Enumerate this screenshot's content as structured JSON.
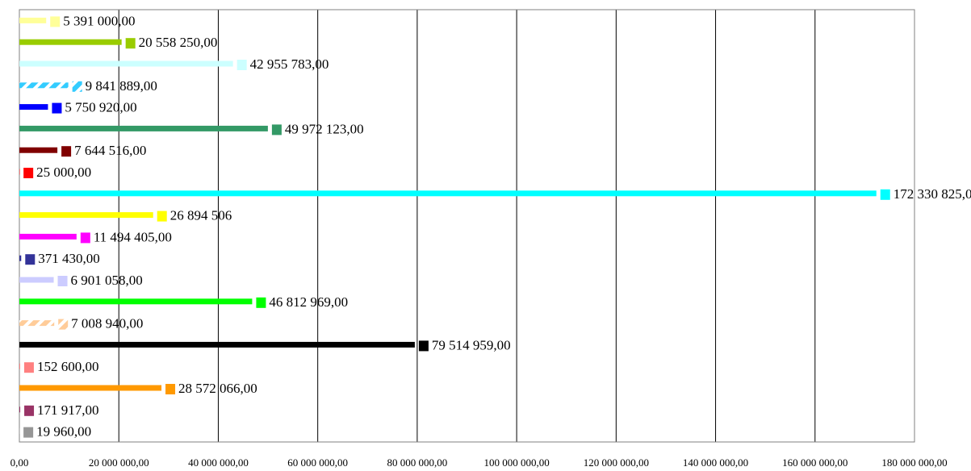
{
  "chart_data": {
    "type": "bar",
    "orientation": "horizontal",
    "xlim": [
      0,
      180000000
    ],
    "grid": true,
    "x_ticks": [
      0,
      20000000,
      40000000,
      60000000,
      80000000,
      100000000,
      120000000,
      140000000,
      160000000,
      180000000
    ],
    "x_tick_labels": [
      "0,00",
      "20 000 000,00",
      "40 000 000,00",
      "60 000 000,00",
      "80 000 000,00",
      "100 000 000,00",
      "120 000 000,00",
      "140 000 000,00",
      "160 000 000,00",
      "180 000 000,00"
    ],
    "bars": [
      {
        "value": 5391000,
        "label": "5 391 000,00",
        "color": "#ffff99",
        "pattern": "solid"
      },
      {
        "value": 20558250,
        "label": "20 558 250,00",
        "color": "#99cc00",
        "pattern": "solid"
      },
      {
        "value": 42955783,
        "label": "42 955 783,00",
        "color": "#ccffff",
        "pattern": "solid"
      },
      {
        "value": 9841889,
        "label": "9 841 889,00",
        "color": "#33ccff",
        "pattern": "striped"
      },
      {
        "value": 5750920,
        "label": "5 750 920,00",
        "color": "#0000ff",
        "pattern": "solid"
      },
      {
        "value": 49972123,
        "label": "49 972 123,00",
        "color": "#339966",
        "pattern": "solid"
      },
      {
        "value": 7644516,
        "label": "7 644 516,00",
        "color": "#800000",
        "pattern": "solid"
      },
      {
        "value": 25000,
        "label": "25 000,00",
        "color": "#ff0000",
        "pattern": "solid"
      },
      {
        "value": 172330825,
        "label": "172 330 825,00",
        "color": "#00ffff",
        "pattern": "solid"
      },
      {
        "value": 26894506,
        "label": "26 894 506",
        "color": "#ffff00",
        "pattern": "solid"
      },
      {
        "value": 11494405,
        "label": "11 494 405,00",
        "color": "#ff00ff",
        "pattern": "solid"
      },
      {
        "value": 371430,
        "label": "371 430,00",
        "color": "#333399",
        "pattern": "solid"
      },
      {
        "value": 6901058,
        "label": "6 901 058,00",
        "color": "#ccccff",
        "pattern": "solid"
      },
      {
        "value": 46812969,
        "label": "46 812 969,00",
        "color": "#00ff00",
        "pattern": "solid"
      },
      {
        "value": 7008940,
        "label": "7 008 940,00",
        "color": "#ffcc99",
        "pattern": "striped"
      },
      {
        "value": 79514959,
        "label": "79 514 959,00",
        "color": "#000000",
        "pattern": "solid"
      },
      {
        "value": 152600,
        "label": "152 600,00",
        "color": "#ff8080",
        "pattern": "solid"
      },
      {
        "value": 28572066,
        "label": "28 572 066,00",
        "color": "#ff9900",
        "pattern": "solid"
      },
      {
        "value": 171917,
        "label": "171 917,00",
        "color": "#993366",
        "pattern": "solid"
      },
      {
        "value": 19960,
        "label": "19 960,00",
        "color": "#969696",
        "pattern": "solid"
      }
    ]
  }
}
